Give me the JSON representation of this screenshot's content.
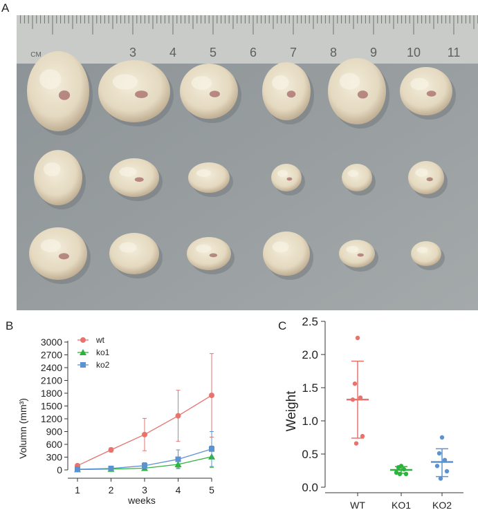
{
  "panels": {
    "a": "A",
    "b": "B",
    "c": "C"
  },
  "colors": {
    "wt": "#e8726c",
    "ko1": "#2db33b",
    "ko2": "#5b92d1",
    "photo_bg": "#8e9598",
    "ruler": "#c9ccc9",
    "tissue": "#e8dfcb",
    "tissue_shadow": "#b9a88f",
    "blood": "#8a3e44"
  },
  "photo": {
    "ruler_marks": [
      "CM",
      "3",
      "4",
      "5",
      "6",
      "7",
      "8",
      "9",
      "10",
      "11"
    ],
    "description_icon": "tumor-specimens-photo",
    "rows": [
      6,
      6,
      6
    ]
  },
  "chart_data": [
    {
      "type": "line",
      "xlabel": "weeks",
      "ylabel": "Volumn (mm³)",
      "x": [
        1,
        2,
        3,
        4,
        5
      ],
      "xlim": [
        1,
        5
      ],
      "ylim": [
        0,
        3000
      ],
      "yticks": [
        0,
        300,
        600,
        900,
        1200,
        1500,
        1800,
        2100,
        2400,
        2700,
        3000
      ],
      "grid": false,
      "legend": "top-left",
      "series": [
        {
          "name": "wt",
          "marker": "circle",
          "values": [
            100,
            470,
            830,
            1270,
            1750
          ],
          "err": [
            10,
            50,
            380,
            600,
            980
          ]
        },
        {
          "name": "ko1",
          "marker": "triangle",
          "values": [
            10,
            20,
            40,
            130,
            310
          ],
          "err": [
            5,
            10,
            30,
            80,
            250
          ]
        },
        {
          "name": "ko2",
          "marker": "square",
          "values": [
            15,
            35,
            100,
            250,
            490
          ],
          "err": [
            5,
            15,
            70,
            220,
            410
          ]
        }
      ]
    },
    {
      "type": "scatter",
      "ylabel": "Weight",
      "categories": [
        "WT",
        "KO1",
        "KO2"
      ],
      "ylim": [
        0,
        2.5
      ],
      "yticks": [
        "0.0",
        "0.5",
        "1.0",
        "1.5",
        "2.0",
        "2.5"
      ],
      "grid": false,
      "groups": [
        {
          "name": "WT",
          "points": [
            2.25,
            1.56,
            1.35,
            1.32,
            0.77,
            0.66
          ],
          "mean": 1.32,
          "sd_low": 0.74,
          "sd_high": 1.9
        },
        {
          "name": "KO1",
          "points": [
            0.32,
            0.3,
            0.27,
            0.22,
            0.2,
            0.2
          ],
          "mean": 0.26,
          "sd_low": 0.21,
          "sd_high": 0.31
        },
        {
          "name": "KO2",
          "points": [
            0.75,
            0.51,
            0.41,
            0.32,
            0.24,
            0.13
          ],
          "mean": 0.38,
          "sd_low": 0.16,
          "sd_high": 0.58
        }
      ]
    }
  ]
}
